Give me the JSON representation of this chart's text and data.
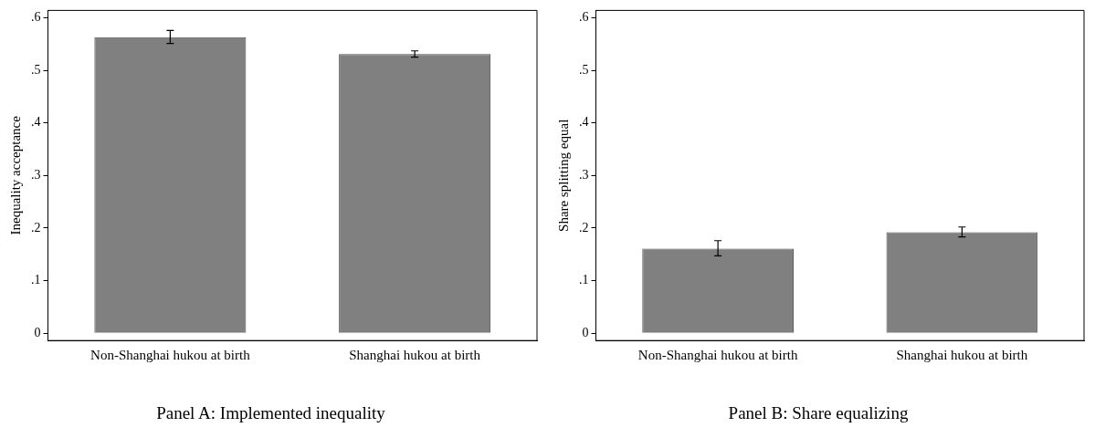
{
  "chart_data": [
    {
      "type": "bar",
      "title": "Panel A: Implemented inequality",
      "ylabel": "Inequality acceptance",
      "categories": [
        "Non-Shanghai hukou at birth",
        "Shanghai hukou at birth"
      ],
      "values": [
        0.563,
        0.531
      ],
      "errors": [
        [
          0.551,
          0.576
        ],
        [
          0.525,
          0.537
        ]
      ],
      "color": "#808080",
      "ylim": [
        -0.014,
        0.614
      ],
      "yticks": [
        {
          "value": 0,
          "label": "0"
        },
        {
          "value": 0.1,
          "label": ".1"
        },
        {
          "value": 0.2,
          "label": ".2"
        },
        {
          "value": 0.3,
          "label": ".3"
        },
        {
          "value": 0.4,
          "label": ".4"
        },
        {
          "value": 0.5,
          "label": ".5"
        },
        {
          "value": 0.6,
          "label": ".6"
        }
      ],
      "grid": false,
      "legend": false
    },
    {
      "type": "bar",
      "title": "Panel B: Share equalizing",
      "ylabel": "Share splitting equal",
      "categories": [
        "Non-Shanghai hukou at birth",
        "Shanghai hukou at birth"
      ],
      "values": [
        0.161,
        0.192
      ],
      "errors": [
        [
          0.147,
          0.176
        ],
        [
          0.183,
          0.202
        ]
      ],
      "color": "#808080",
      "ylim": [
        -0.014,
        0.614
      ],
      "yticks": [
        {
          "value": 0,
          "label": "0"
        },
        {
          "value": 0.1,
          "label": ".1"
        },
        {
          "value": 0.2,
          "label": ".2"
        },
        {
          "value": 0.3,
          "label": ".3"
        },
        {
          "value": 0.4,
          "label": ".4"
        },
        {
          "value": 0.5,
          "label": ".5"
        },
        {
          "value": 0.6,
          "label": ".6"
        }
      ],
      "grid": false,
      "legend": false
    }
  ]
}
